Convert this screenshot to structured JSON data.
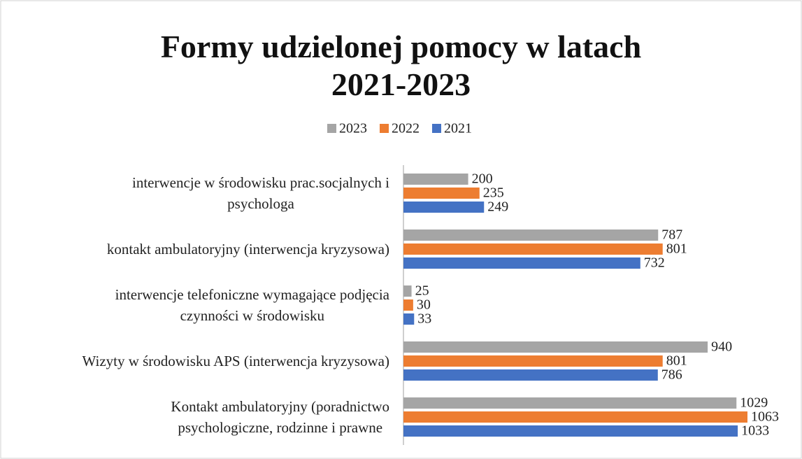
{
  "chart_data": {
    "type": "bar",
    "orientation": "horizontal",
    "title": "Formy udzielonej pomocy w latach\n2021-2023",
    "categories": [
      "interwencje w środowisku prac.socjalnych i\npsychologa",
      "kontakt ambulatoryjny (interwencja kryzysowa)",
      "interwencje telefoniczne wymagające podjęcia\nczynności w środowisku",
      "Wizyty w środowisku APS (interwencja kryzysowa)",
      "Kontakt ambulatoryjny (poradnictwo\npsychologiczne, rodzinne i prawne"
    ],
    "series": [
      {
        "name": "2023",
        "color": "#a5a5a5",
        "values": [
          200,
          787,
          25,
          940,
          1029
        ]
      },
      {
        "name": "2022",
        "color": "#ed7d31",
        "values": [
          235,
          801,
          30,
          801,
          1063
        ]
      },
      {
        "name": "2021",
        "color": "#4472c4",
        "values": [
          249,
          732,
          33,
          786,
          1033
        ]
      }
    ],
    "legend": "top"
  }
}
